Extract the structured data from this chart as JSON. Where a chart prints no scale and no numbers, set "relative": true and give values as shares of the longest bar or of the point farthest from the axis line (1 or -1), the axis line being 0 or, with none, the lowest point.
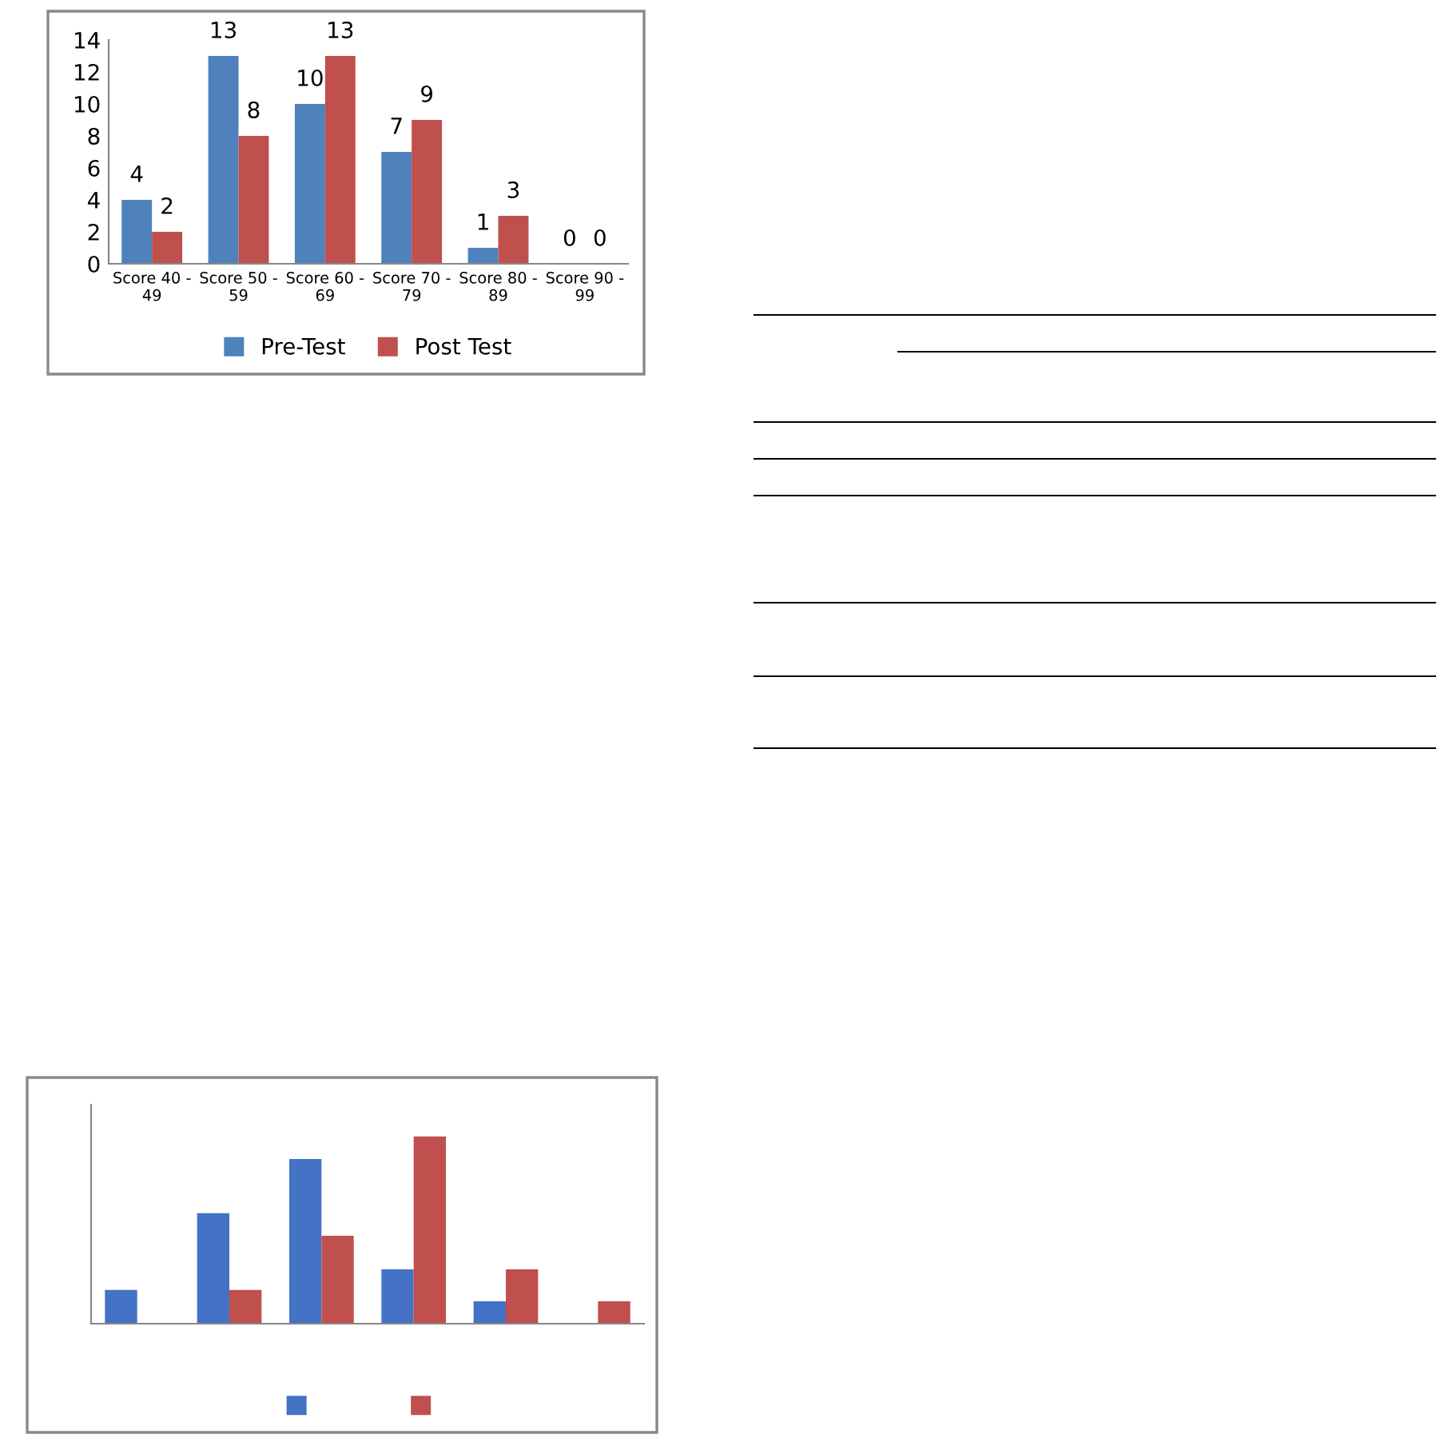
{
  "chart_data": [
    {
      "type": "bar",
      "categories": [
        "Score 40 -\n49",
        "Score 50 -\n59",
        "Score 60 -\n69",
        "Score 70 -\n79",
        "Score 80 -\n89",
        "Score 90 -\n99"
      ],
      "series": [
        {
          "name": "Pre-Test",
          "color": "#4f81bd",
          "values": [
            4,
            13,
            10,
            7,
            1,
            0
          ]
        },
        {
          "name": "Post Test",
          "color": "#c0504d",
          "values": [
            2,
            8,
            13,
            9,
            3,
            0
          ]
        }
      ],
      "ylim": [
        0,
        14
      ],
      "yticks": [
        0,
        2,
        4,
        6,
        8,
        10,
        12,
        14
      ],
      "grid": false,
      "legend": "bottom",
      "data_labels": true
    },
    {
      "type": "bar",
      "relative": true,
      "categories": [
        null,
        null,
        null,
        null,
        null,
        null
      ],
      "series": [
        {
          "color": "#4472c4",
          "values": [
            0.18,
            0.59,
            0.88,
            0.29,
            0.12,
            0
          ]
        },
        {
          "color": "#c0504d",
          "values": [
            0,
            0.18,
            0.47,
            1,
            0.29,
            0.12
          ]
        }
      ],
      "grid": false,
      "legend": "bottom"
    }
  ]
}
